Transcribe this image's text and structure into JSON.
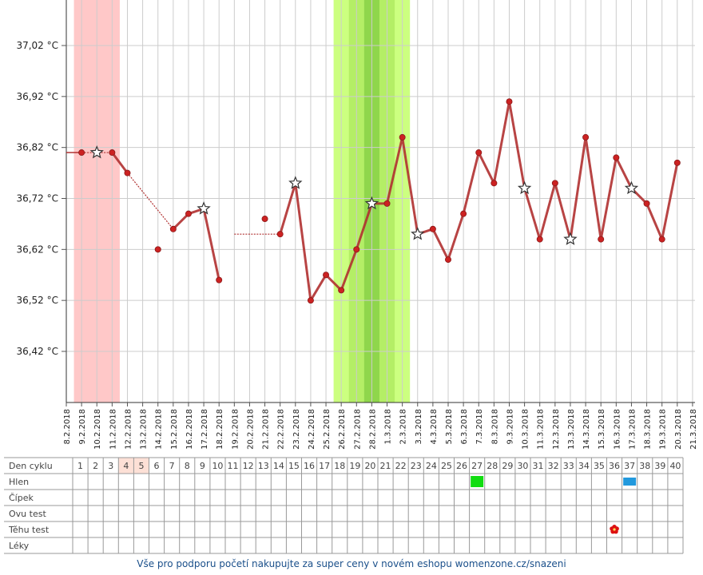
{
  "chart_data": {
    "type": "line",
    "ylim": [
      36.36,
      37.11
    ],
    "y_ticks": [
      "36,42 °C",
      "36,52 °C",
      "36,62 °C",
      "36,72 °C",
      "36,82 °C",
      "36,92 °C",
      "37,02 °C"
    ],
    "y_tick_values": [
      36.42,
      36.52,
      36.62,
      36.72,
      36.82,
      36.92,
      37.02
    ],
    "dates": [
      "8.2.2018",
      "9.2.2018",
      "10.2.2018",
      "11.2.2018",
      "12.2.2018",
      "13.2.2018",
      "14.2.2018",
      "15.2.2018",
      "16.2.2018",
      "17.2.2018",
      "18.2.2018",
      "19.2.2018",
      "20.2.2018",
      "21.2.2018",
      "22.2.2018",
      "23.2.2018",
      "24.2.2018",
      "25.2.2018",
      "26.2.2018",
      "27.2.2018",
      "28.2.2018",
      "1.3.2018",
      "2.3.2018",
      "3.3.2018",
      "4.3.2018",
      "5.3.2018",
      "6.3.2018",
      "7.3.2018",
      "8.3.2018",
      "9.3.2018",
      "10.3.2018",
      "11.3.2018",
      "12.3.2018",
      "13.3.2018",
      "14.3.2018",
      "15.3.2018",
      "16.3.2018",
      "17.3.2018",
      "18.3.2018",
      "19.3.2018",
      "20.3.2018",
      "21.3.2018"
    ],
    "temperatures": [
      null,
      36.81,
      36.81,
      36.81,
      36.77,
      null,
      36.62,
      36.66,
      36.69,
      36.7,
      36.56,
      null,
      null,
      36.68,
      36.65,
      36.75,
      36.52,
      36.57,
      36.54,
      36.62,
      36.71,
      36.71,
      36.84,
      36.65,
      36.66,
      36.6,
      36.69,
      36.81,
      36.75,
      36.91,
      36.74,
      36.64,
      36.75,
      36.64,
      36.84,
      36.64,
      36.8,
      36.74,
      36.71,
      36.64,
      36.79,
      null
    ],
    "star_days": [
      2,
      9,
      15,
      20,
      23,
      30,
      33,
      37
    ],
    "solid_segments": [
      [
        3,
        4
      ],
      [
        7,
        10
      ],
      [
        10,
        11
      ],
      [
        14,
        23
      ],
      [
        23,
        41
      ]
    ],
    "dotted_segments": [
      [
        1,
        3
      ],
      [
        4,
        7
      ],
      [
        11,
        14
      ]
    ],
    "bands": {
      "menstruation": {
        "from": 1,
        "to": 3,
        "color": "#ffc8c8"
      },
      "fertile": {
        "from": 18,
        "to": 22,
        "color": "#ccff80"
      },
      "fertile_mid": {
        "from": 19,
        "to": 21,
        "color": "#b4ee66"
      },
      "ovulation": {
        "from": 20,
        "to": 20,
        "color": "#8fd64c"
      }
    },
    "line_color": "#b03030",
    "marker_color": "#cc2222"
  },
  "table": {
    "row_labels": [
      "Den cyklu",
      "Hlen",
      "Čípek",
      "Ovu test",
      "Těhu test",
      "Léky"
    ],
    "cycle_days": [
      "1",
      "2",
      "3",
      "4",
      "5",
      "6",
      "7",
      "8",
      "9",
      "10",
      "11",
      "12",
      "13",
      "14",
      "15",
      "16",
      "17",
      "18",
      "19",
      "20",
      "21",
      "22",
      "23",
      "24",
      "25",
      "26",
      "27",
      "28",
      "29",
      "30",
      "31",
      "32",
      "33",
      "34",
      "35",
      "36",
      "37",
      "38",
      "39",
      "40"
    ],
    "highlight_days": [
      4,
      5
    ],
    "highlight_color": "#fde0d6",
    "markers": [
      {
        "row": 1,
        "day": 27,
        "type": "square",
        "color": "#11dd11"
      },
      {
        "row": 1,
        "day": 37,
        "type": "square",
        "color": "#2299dd"
      },
      {
        "row": 4,
        "day": 36,
        "type": "flower",
        "color": "#dd1111"
      }
    ]
  },
  "footer_text": "Vše pro podporu početí nakupujte za super ceny v novém eshopu womenzone.cz/snazeni"
}
